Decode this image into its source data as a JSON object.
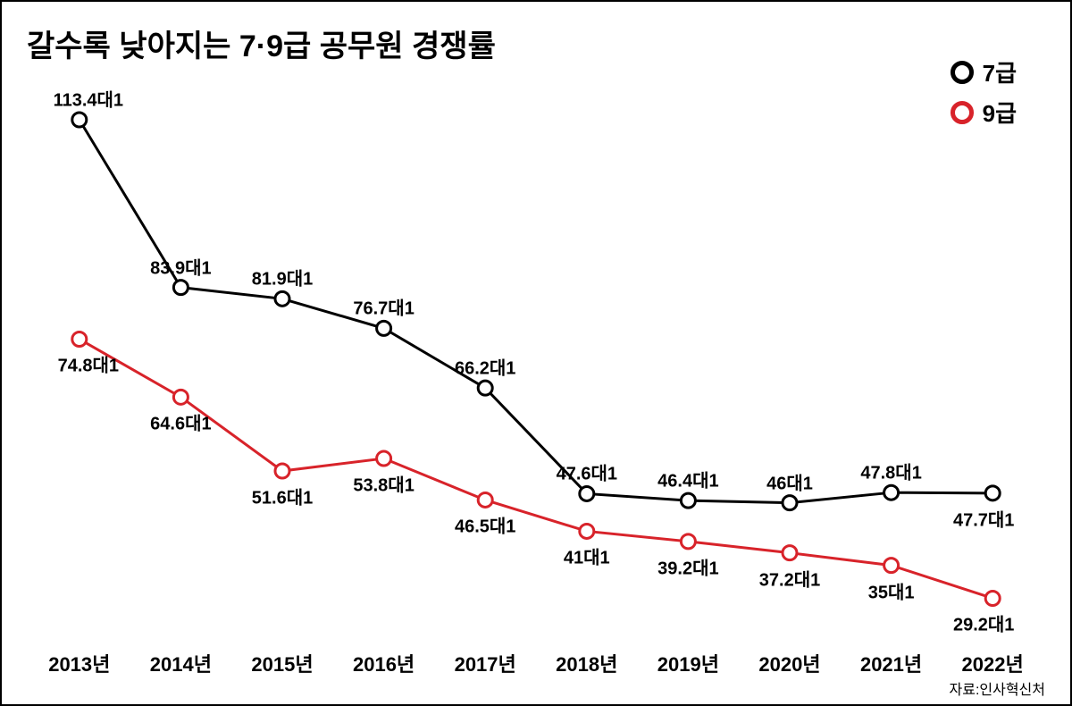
{
  "title": "갈수록 낮아지는 7·9급 공무원 경쟁률",
  "title_fontsize": 34,
  "source": "자료:인사혁신처",
  "source_fontsize": 16,
  "background_color": "#ffffff",
  "border_color": "#000000",
  "chart": {
    "type": "line",
    "x_categories": [
      "2013년",
      "2014년",
      "2015년",
      "2016년",
      "2017년",
      "2018년",
      "2019년",
      "2020년",
      "2021년",
      "2022년"
    ],
    "x_fontsize": 22,
    "x_fontweight": 900,
    "ylim": [
      20,
      120
    ],
    "label_suffix": "대1",
    "label_fontsize": 20,
    "series": [
      {
        "name": "7급",
        "color": "#000000",
        "line_width": 3,
        "marker": "circle",
        "marker_size": 8,
        "marker_stroke": 3,
        "marker_fill": "#ffffff",
        "values": [
          113.4,
          83.9,
          81.9,
          76.7,
          66.2,
          47.6,
          46.4,
          46,
          47.8,
          47.7
        ],
        "label_positions": [
          "above",
          "above",
          "above",
          "above",
          "above",
          "above",
          "above",
          "above",
          "above",
          "below"
        ],
        "label_color": "#000000"
      },
      {
        "name": "9급",
        "color": "#d8232a",
        "line_width": 3,
        "marker": "circle",
        "marker_size": 8,
        "marker_stroke": 3,
        "marker_fill": "#ffffff",
        "values": [
          74.8,
          64.6,
          51.6,
          53.8,
          46.5,
          41,
          39.2,
          37.2,
          35,
          29.2
        ],
        "label_positions": [
          "below",
          "below",
          "below",
          "below",
          "below",
          "below",
          "below",
          "below",
          "below",
          "below"
        ],
        "label_color": "#000000"
      }
    ]
  },
  "legend": {
    "items": [
      {
        "label": "7급",
        "color": "#000000"
      },
      {
        "label": "9급",
        "color": "#d8232a"
      }
    ],
    "fontsize": 26,
    "marker_stroke": 5
  }
}
